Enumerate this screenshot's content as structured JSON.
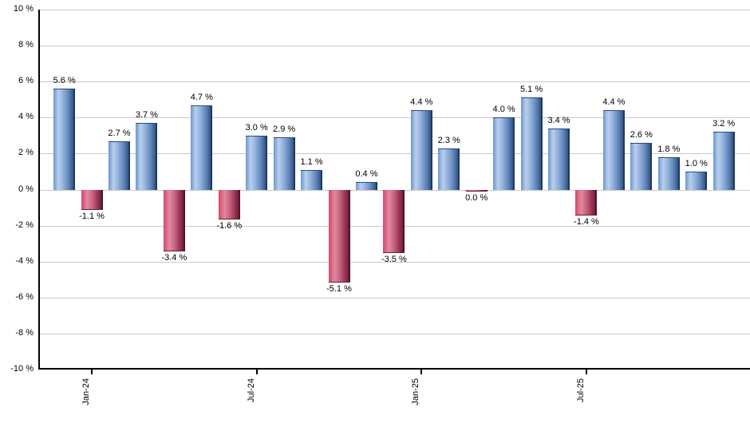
{
  "chart_data": {
    "type": "bar",
    "title": "",
    "xlabel": "",
    "ylabel": "",
    "ylim": [
      -10,
      10
    ],
    "grid": "horizontal",
    "legend": "none",
    "values": [
      5.6,
      -1.1,
      2.7,
      3.7,
      -3.4,
      4.7,
      -1.6,
      3.0,
      2.9,
      1.1,
      -5.1,
      0.4,
      -3.5,
      4.4,
      2.3,
      0.0,
      4.0,
      5.1,
      3.4,
      -1.4,
      4.4,
      2.6,
      1.8,
      1.0,
      3.2
    ],
    "bar_labels": [
      "5.6 %",
      "-1.1 %",
      "2.7 %",
      "3.7 %",
      "-3.4 %",
      "4.7 %",
      "-1.6 %",
      "3.0 %",
      "2.9 %",
      "1.1 %",
      "-5.1 %",
      "0.4 %",
      "-3.5 %",
      "4.4 %",
      "2.3 %",
      "0.0 %",
      "4.0 %",
      "5.1 %",
      "3.4 %",
      "-1.4 %",
      "4.4 %",
      "2.6 %",
      "1.8 %",
      "1.0 %",
      "3.2 %"
    ],
    "x_ticks": [
      {
        "bar_index": 1,
        "label": "Jan-24"
      },
      {
        "bar_index": 7,
        "label": "Jul-24"
      },
      {
        "bar_index": 13,
        "label": "Jan-25"
      },
      {
        "bar_index": 19,
        "label": "Jul-25"
      }
    ],
    "y_ticks": [
      {
        "value": 10,
        "label": "10 %"
      },
      {
        "value": 8,
        "label": "8 %"
      },
      {
        "value": 6,
        "label": "6 %"
      },
      {
        "value": 4,
        "label": "4 %"
      },
      {
        "value": 2,
        "label": "2 %"
      },
      {
        "value": 0,
        "label": "0 %"
      },
      {
        "value": -2,
        "label": "-2 %"
      },
      {
        "value": -4,
        "label": "-4 %"
      },
      {
        "value": -6,
        "label": "-6 %"
      },
      {
        "value": -8,
        "label": "-8 %"
      },
      {
        "value": -10,
        "label": "-10 %"
      }
    ],
    "colors": {
      "positive_bar": "#7fa5d8",
      "positive_bar_border": "#1d3a63",
      "negative_bar": "#cc4568",
      "negative_bar_border": "#551226",
      "gridline": "#c9c9c9",
      "axis": "#000000",
      "label_text": "#000000"
    }
  }
}
